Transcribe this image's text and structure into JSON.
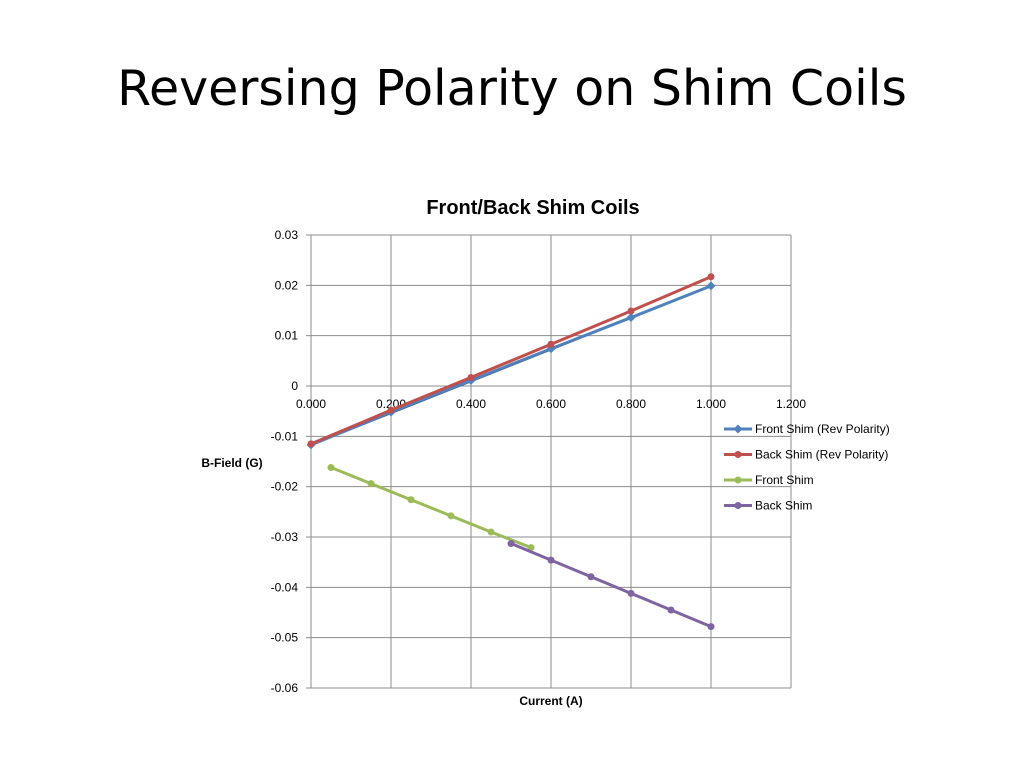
{
  "slide": {
    "title": "Reversing Polarity on Shim Coils"
  },
  "chart_data": {
    "type": "scatter",
    "title": "Front/Back Shim Coils",
    "xlabel": "Current (A)",
    "ylabel": "B-Field (G)",
    "xlim": [
      0,
      1.2
    ],
    "ylim": [
      -0.06,
      0.03
    ],
    "x_ticks": [
      "0.000",
      "0.200",
      "0.400",
      "0.600",
      "0.800",
      "1.000",
      "1.200"
    ],
    "y_ticks": [
      "0.03",
      "0.02",
      "0.01",
      "0",
      "-0.01",
      "-0.02",
      "-0.03",
      "-0.04",
      "-0.05",
      "-0.06"
    ],
    "grid": true,
    "legend_position": "right",
    "series": [
      {
        "name": "Front Shim (Rev Polarity)",
        "color": "#4f81bd",
        "marker": "diamond",
        "x": [
          0,
          0.2,
          0.4,
          0.6,
          0.8,
          1.0
        ],
        "y": [
          -0.0117,
          -0.0052,
          0.0011,
          0.0074,
          0.0136,
          0.0199
        ]
      },
      {
        "name": "Back Shim (Rev Polarity)",
        "color": "#c0504d",
        "marker": "circle",
        "x": [
          0,
          0.2,
          0.4,
          0.6,
          0.8,
          1.0
        ],
        "y": [
          -0.0115,
          -0.0048,
          0.0017,
          0.0083,
          0.0149,
          0.0217
        ]
      },
      {
        "name": "Front Shim",
        "color": "#9bbb59",
        "marker": "circle",
        "x": [
          0.05,
          0.15,
          0.25,
          0.35,
          0.45,
          0.55
        ],
        "y": [
          -0.0162,
          -0.0194,
          -0.0226,
          -0.0258,
          -0.029,
          -0.0321
        ]
      },
      {
        "name": "Back Shim",
        "color": "#8064a2",
        "marker": "circle",
        "x": [
          0.5,
          0.6,
          0.7,
          0.8,
          0.9,
          1.0
        ],
        "y": [
          -0.0313,
          -0.0346,
          -0.0379,
          -0.0412,
          -0.0445,
          -0.0478
        ]
      }
    ],
    "trendline": {
      "color": "#1f2f5a",
      "x": [
        0,
        1.0
      ],
      "y": [
        -0.0117,
        0.0199
      ]
    }
  }
}
